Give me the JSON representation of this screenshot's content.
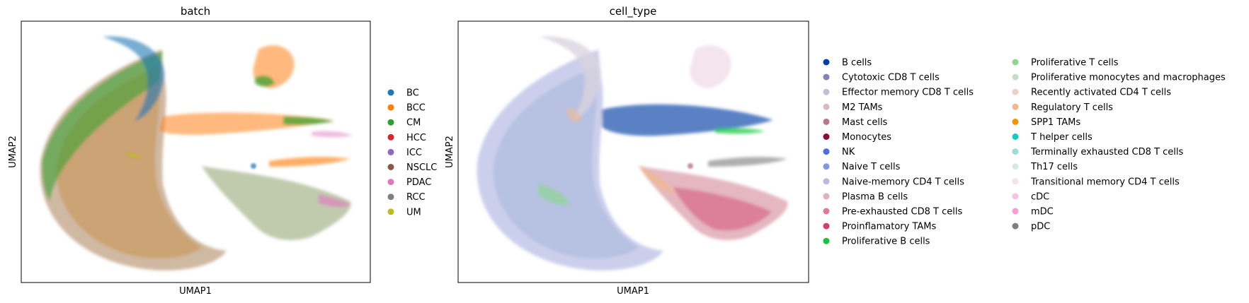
{
  "chart_data": [
    {
      "type": "scatter",
      "title": "batch",
      "xlabel": "UMAP1",
      "ylabel": "UMAP2",
      "grid": false,
      "ticks": false,
      "legend_placement": "right",
      "categories": [
        {
          "name": "BC",
          "color": "#1f77b4"
        },
        {
          "name": "BCC",
          "color": "#ff7f0e"
        },
        {
          "name": "CM",
          "color": "#2ca02c"
        },
        {
          "name": "HCC",
          "color": "#d62728"
        },
        {
          "name": "ICC",
          "color": "#9467bd"
        },
        {
          "name": "NSCLC",
          "color": "#8c564b"
        },
        {
          "name": "PDAC",
          "color": "#e377c2"
        },
        {
          "name": "RCC",
          "color": "#7f7f7f"
        },
        {
          "name": "UM",
          "color": "#bcbd22"
        }
      ]
    },
    {
      "type": "scatter",
      "title": "cell_type",
      "xlabel": "UMAP1",
      "ylabel": "UMAP2",
      "grid": false,
      "ticks": false,
      "legend_placement": "right",
      "categories": [
        {
          "name": "B cells",
          "color": "#023fa5"
        },
        {
          "name": "Cytotoxic CD8 T cells",
          "color": "#7d87b9"
        },
        {
          "name": "Effector memory CD8 T cells",
          "color": "#bec1d4"
        },
        {
          "name": "M2 TAMs",
          "color": "#d6bcc0"
        },
        {
          "name": "Mast cells",
          "color": "#bb7784"
        },
        {
          "name": "Monocytes",
          "color": "#8e063b"
        },
        {
          "name": "NK",
          "color": "#4a6fe3"
        },
        {
          "name": "Naive T cells",
          "color": "#8595e1"
        },
        {
          "name": "Naive-memory CD4 T cells",
          "color": "#b5bbe3"
        },
        {
          "name": "Plasma B cells",
          "color": "#e6afb9"
        },
        {
          "name": "Pre-exhausted CD8 T cells",
          "color": "#e07b91"
        },
        {
          "name": "Proinflamatory TAMs",
          "color": "#d33f6a"
        },
        {
          "name": "Proliferative B cells",
          "color": "#11c638"
        },
        {
          "name": "Proliferative T cells",
          "color": "#8dd593"
        },
        {
          "name": "Proliferative monocytes and macrophages",
          "color": "#c6dec7"
        },
        {
          "name": "Recently activated CD4 T cells",
          "color": "#ead3c6"
        },
        {
          "name": "Regulatory T cells",
          "color": "#f0b98d"
        },
        {
          "name": "SPP1 TAMs",
          "color": "#ef9708"
        },
        {
          "name": "T helper cells",
          "color": "#0fcfc0"
        },
        {
          "name": "Terminally exhausted CD8 T cells",
          "color": "#9cded6"
        },
        {
          "name": "Th17 cells",
          "color": "#d5eae7"
        },
        {
          "name": "Transitional memory CD4 T cells",
          "color": "#f3e1eb"
        },
        {
          "name": "cDC",
          "color": "#f6c4e1"
        },
        {
          "name": "mDC",
          "color": "#f79cd4"
        },
        {
          "name": "pDC",
          "color": "#7f7f7f"
        }
      ]
    }
  ]
}
